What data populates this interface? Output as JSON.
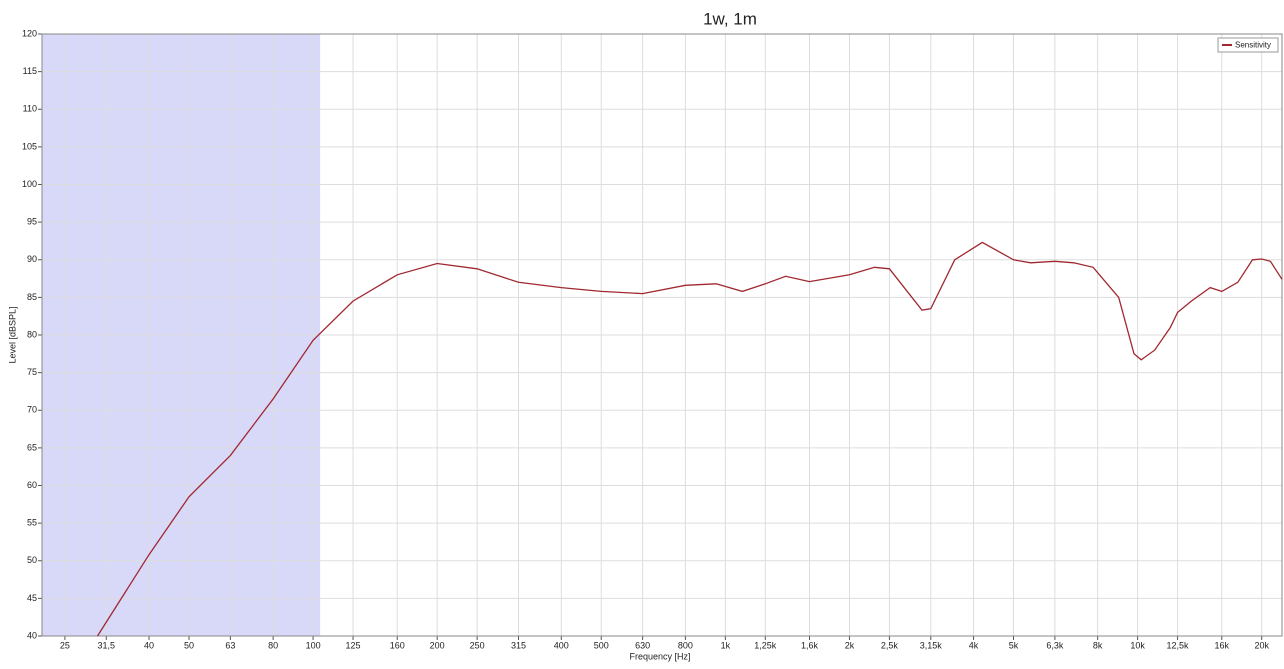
{
  "chart_data": {
    "type": "line",
    "title": "1w, 1m",
    "x_label": "Frequency [Hz]",
    "y_label": "Level [dBSPL]",
    "xscale": "log",
    "grid": true,
    "legend": "upper right",
    "xlim": [
      22,
      22400
    ],
    "ylim": [
      40,
      120
    ],
    "shaded_range": [
      22,
      104
    ],
    "shaded_color": "#d8d8f8",
    "xticks": [
      25,
      {
        "value": 31.5,
        "label": "31,5"
      },
      40,
      50,
      63,
      80,
      100,
      125,
      160,
      200,
      250,
      315,
      400,
      500,
      630,
      800,
      {
        "value": 1000,
        "label": "1k"
      },
      {
        "value": 1250,
        "label": "1,25k"
      },
      {
        "value": 1600,
        "label": "1,6k"
      },
      {
        "value": 2000,
        "label": "2k"
      },
      {
        "value": 2500,
        "label": "2,5k"
      },
      {
        "value": 3150,
        "label": "3,15k"
      },
      {
        "value": 4000,
        "label": "4k"
      },
      {
        "value": 5000,
        "label": "5k"
      },
      {
        "value": 6300,
        "label": "6,3k"
      },
      {
        "value": 8000,
        "label": "8k"
      },
      {
        "value": 10000,
        "label": "10k"
      },
      {
        "value": 12500,
        "label": "12,5k"
      },
      {
        "value": 16000,
        "label": "16k"
      },
      {
        "value": 20000,
        "label": "20k"
      }
    ],
    "yticks": [
      40,
      45,
      50,
      55,
      60,
      65,
      70,
      75,
      80,
      85,
      90,
      95,
      100,
      105,
      110,
      115,
      120
    ],
    "x": [
      30,
      40,
      50,
      63,
      80,
      100,
      125,
      160,
      200,
      250,
      315,
      400,
      500,
      630,
      800,
      950,
      1100,
      1250,
      1400,
      1600,
      2000,
      2300,
      2500,
      3000,
      3150,
      3600,
      4200,
      5000,
      5500,
      6300,
      7000,
      7800,
      9000,
      9800,
      10200,
      11000,
      12000,
      12500,
      13500,
      15000,
      16000,
      17500,
      19000,
      20000,
      21000,
      22400
    ],
    "series": [
      {
        "name": "Sensitivity",
        "color": "#a02830",
        "values": [
          40,
          50.8,
          58.5,
          64,
          71.5,
          79.3,
          84.5,
          88,
          89.5,
          88.8,
          87,
          86.3,
          85.8,
          85.5,
          86.6,
          86.8,
          85.8,
          86.8,
          87.8,
          87.1,
          88,
          89,
          88.8,
          83.3,
          83.5,
          90,
          92.3,
          90,
          89.6,
          89.8,
          89.6,
          89,
          85,
          77.5,
          76.7,
          78,
          81,
          83,
          84.5,
          86.3,
          85.8,
          87,
          90,
          90.1,
          89.8,
          87.4
        ]
      }
    ]
  }
}
